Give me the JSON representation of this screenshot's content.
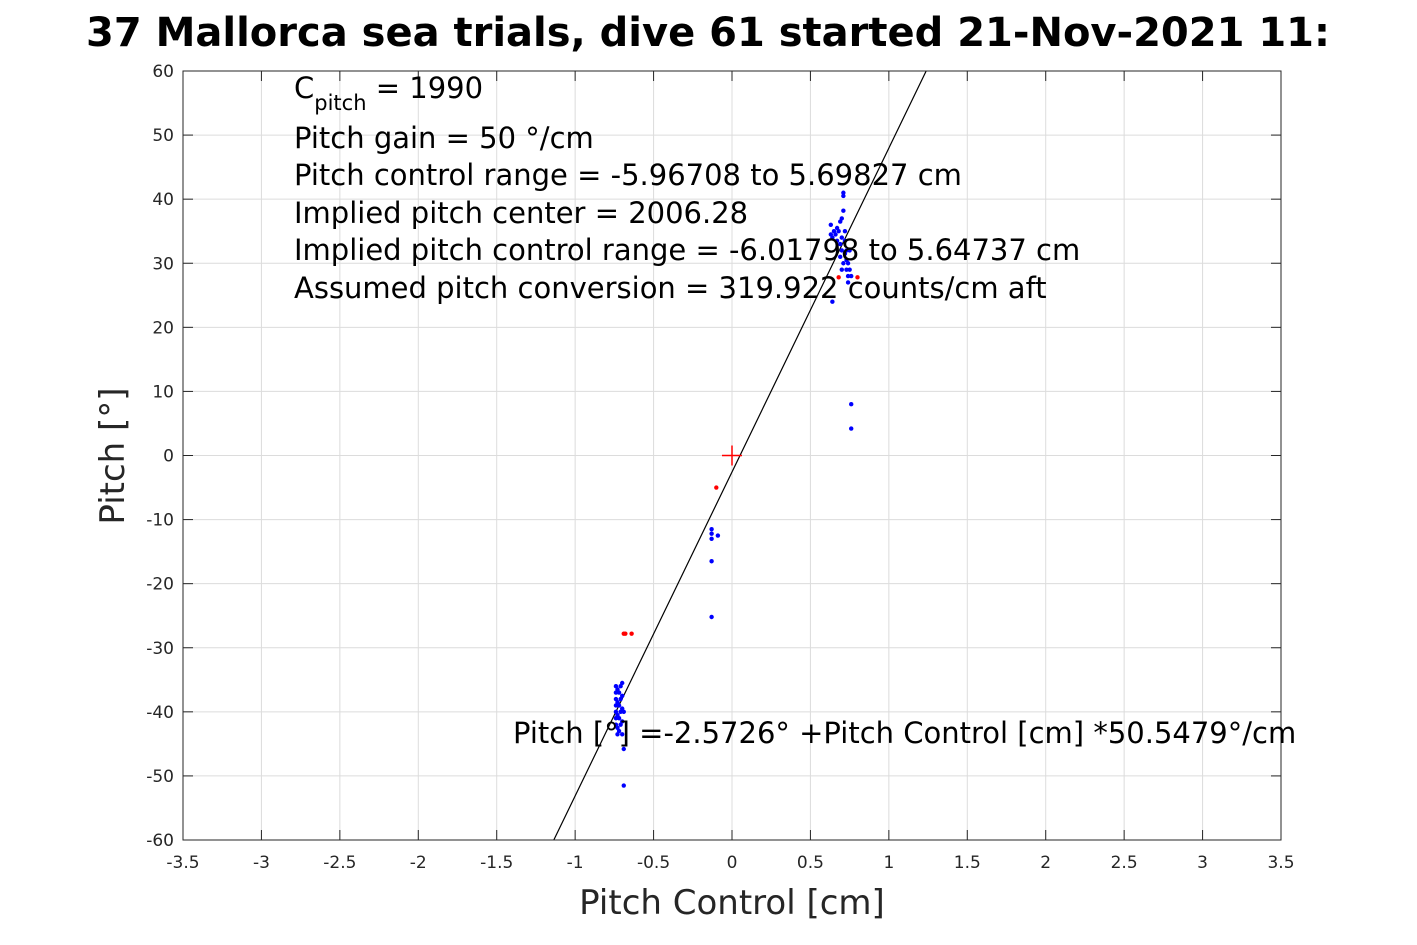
{
  "chart_data": {
    "type": "scatter",
    "title": "37 Mallorca sea trials, dive 61 started 21-Nov-2021 11:",
    "xlabel": "Pitch Control [cm]",
    "ylabel": "Pitch [°]",
    "xlim": [
      -3.5,
      3.5
    ],
    "ylim": [
      -60,
      60
    ],
    "xticks": [
      -3.5,
      -3,
      -2.5,
      -2,
      -1.5,
      -1,
      -0.5,
      0,
      0.5,
      1,
      1.5,
      2,
      2.5,
      3,
      3.5
    ],
    "yticks": [
      -60,
      -50,
      -40,
      -30,
      -20,
      -10,
      0,
      10,
      20,
      30,
      40,
      50,
      60
    ],
    "xtick_labels": [
      "-3.5",
      "-3",
      "-2.5",
      "-2",
      "-1.5",
      "-1",
      "-0.5",
      "0",
      "0.5",
      "1",
      "1.5",
      "2",
      "2.5",
      "3",
      "3.5"
    ],
    "ytick_labels": [
      "-60",
      "-50",
      "-40",
      "-30",
      "-20",
      "-10",
      "0",
      "10",
      "20",
      "30",
      "40",
      "50",
      "60"
    ],
    "grid": true,
    "series": [
      {
        "color": "#0000ff",
        "points": [
          [
            -0.74,
            -36
          ],
          [
            -0.74,
            -37
          ],
          [
            -0.74,
            -38
          ],
          [
            -0.74,
            -39
          ],
          [
            -0.74,
            -40
          ],
          [
            -0.74,
            -41
          ],
          [
            -0.74,
            -42
          ],
          [
            -0.73,
            -36.5
          ],
          [
            -0.73,
            -38.5
          ],
          [
            -0.73,
            -40.5
          ],
          [
            -0.73,
            -42.5
          ],
          [
            -0.73,
            -43.5
          ],
          [
            -0.72,
            -37
          ],
          [
            -0.72,
            -39
          ],
          [
            -0.72,
            -41
          ],
          [
            -0.72,
            -43
          ],
          [
            -0.71,
            -36
          ],
          [
            -0.71,
            -38
          ],
          [
            -0.71,
            -40
          ],
          [
            -0.71,
            -42
          ],
          [
            -0.7,
            -35.5
          ],
          [
            -0.7,
            -37.5
          ],
          [
            -0.7,
            -39.5
          ],
          [
            -0.7,
            -41.5
          ],
          [
            -0.7,
            -43.5
          ],
          [
            -0.69,
            -40
          ],
          [
            -0.69,
            -45.8
          ],
          [
            -0.69,
            -51.5
          ],
          [
            -0.13,
            -11.5
          ],
          [
            -0.13,
            -12.2
          ],
          [
            -0.13,
            -13
          ],
          [
            -0.13,
            -16.5
          ],
          [
            -0.13,
            -25.2
          ],
          [
            -0.09,
            -12.5
          ],
          [
            0.63,
            36
          ],
          [
            0.63,
            34.5
          ],
          [
            0.64,
            24
          ],
          [
            0.64,
            34
          ],
          [
            0.65,
            35
          ],
          [
            0.66,
            34.5
          ],
          [
            0.67,
            35.5
          ],
          [
            0.67,
            33.5
          ],
          [
            0.68,
            35
          ],
          [
            0.69,
            33
          ],
          [
            0.69,
            36.5
          ],
          [
            0.7,
            34
          ],
          [
            0.7,
            37
          ],
          [
            0.7,
            32
          ],
          [
            0.71,
            38.2
          ],
          [
            0.71,
            41
          ],
          [
            0.71,
            40.5
          ],
          [
            0.71,
            30
          ],
          [
            0.72,
            31.5
          ],
          [
            0.72,
            33.5
          ],
          [
            0.72,
            35
          ],
          [
            0.73,
            30.5
          ],
          [
            0.73,
            29
          ],
          [
            0.73,
            32
          ],
          [
            0.74,
            28
          ],
          [
            0.74,
            27
          ],
          [
            0.74,
            30
          ],
          [
            0.75,
            29
          ],
          [
            0.75,
            32
          ],
          [
            0.76,
            28
          ],
          [
            0.76,
            8
          ],
          [
            0.76,
            4.2
          ],
          [
            0.7,
            29
          ],
          [
            0.69,
            31
          ]
        ]
      },
      {
        "color": "#ff0000",
        "points": [
          [
            -0.69,
            -27.8
          ],
          [
            -0.68,
            -27.8
          ],
          [
            -0.64,
            -27.8
          ],
          [
            -0.1,
            -5
          ],
          [
            0.8,
            27.8
          ],
          [
            0.68,
            27.8
          ]
        ]
      }
    ],
    "center_marker": {
      "x": 0,
      "y": 0,
      "color": "#ff0000"
    },
    "fit_line": {
      "intercept": -2.5726,
      "slope": 50.5479,
      "color": "#000000"
    },
    "annotations": {
      "c_pitch_symbol": "C",
      "c_pitch_subscript": "pitch",
      "c_pitch_value": " = 1990",
      "lines": [
        "Pitch gain = 50 °/cm",
        "Pitch control range = -5.96708 to 5.69827 cm",
        "Implied pitch center = 2006.28",
        "Implied pitch control range = -6.01798 to 5.64737 cm",
        "Assumed pitch conversion = 319.922 counts/cm aft"
      ],
      "fit_equation": "Pitch [°] =-2.5726° +Pitch Control [cm] *50.5479°/cm"
    }
  }
}
